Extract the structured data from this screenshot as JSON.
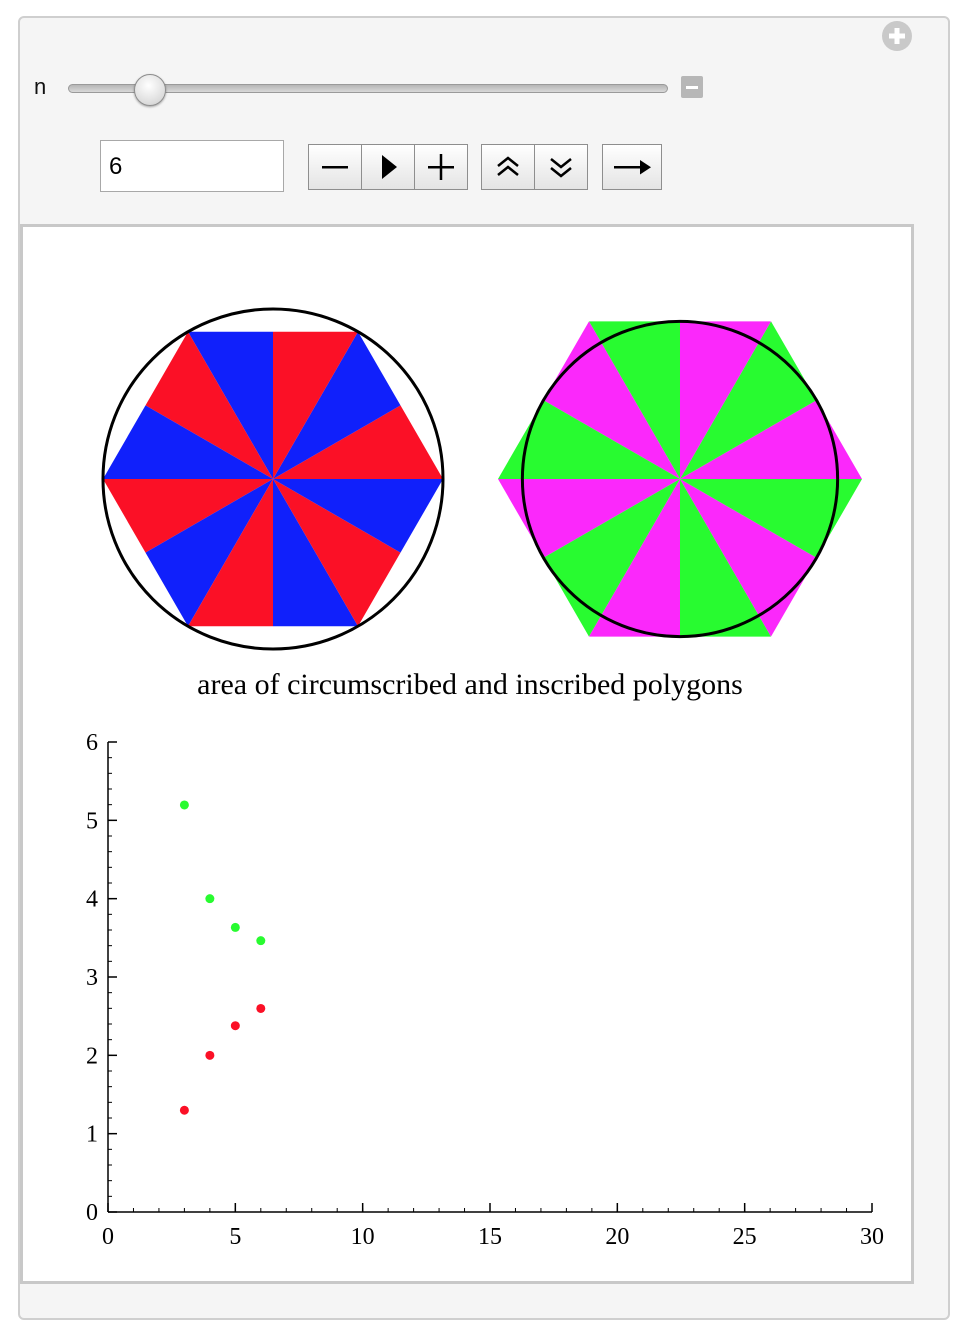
{
  "manipulator": {
    "variable_label": "n",
    "value": "6",
    "slider": {
      "min": 3,
      "max": 30,
      "value": 6
    }
  },
  "controls": {
    "decrement": "−",
    "play": "▶",
    "increment": "+",
    "faster": "⌃⌃",
    "slower": "⌄⌄",
    "direction": "→"
  },
  "icons": {
    "options_toggle": "plus-circle-icon",
    "hide_controls": "minus-square-icon"
  },
  "figures": {
    "inscribed": {
      "sides": 6,
      "colors": [
        "#fb1026",
        "#1020fb"
      ],
      "circle_color": "#000000"
    },
    "circumscribed": {
      "sides": 6,
      "colors": [
        "#fb28fb",
        "#28fb30"
      ],
      "circle_color": "#000000"
    }
  },
  "chart_data": {
    "type": "scatter",
    "title": "area of circumscribed and inscribed polygons",
    "xlabel": "",
    "ylabel": "",
    "xlim": [
      0,
      30
    ],
    "ylim": [
      0,
      6
    ],
    "xticks": [
      0,
      5,
      10,
      15,
      20,
      25,
      30
    ],
    "yticks": [
      0,
      1,
      2,
      3,
      4,
      5,
      6
    ],
    "series": [
      {
        "color": "#28fb30",
        "x": [
          3,
          4,
          5,
          6
        ],
        "y": [
          5.196,
          4.0,
          3.633,
          3.464
        ]
      },
      {
        "color": "#fb1026",
        "x": [
          3,
          4,
          5,
          6
        ],
        "y": [
          1.299,
          2.0,
          2.378,
          2.598
        ]
      }
    ]
  }
}
